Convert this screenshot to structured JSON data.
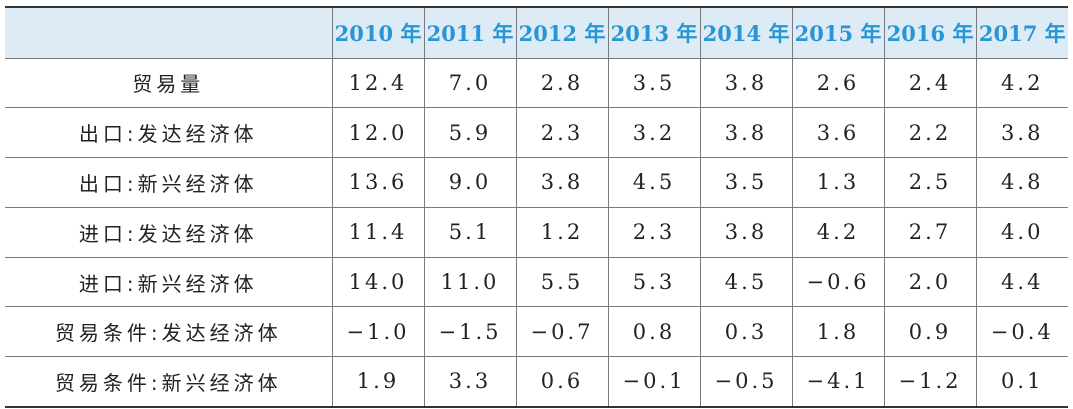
{
  "table": {
    "header": [
      "",
      "2010 年",
      "2011 年",
      "2012 年",
      "2013 年",
      "2014 年",
      "2015 年",
      "2016 年",
      "2017 年"
    ],
    "rows": [
      {
        "label": "贸易量",
        "values": [
          "12.4",
          "7.0",
          "2.8",
          "3.5",
          "3.8",
          "2.6",
          "2.4",
          "4.2"
        ]
      },
      {
        "label": "出口:发达经济体",
        "values": [
          "12.0",
          "5.9",
          "2.3",
          "3.2",
          "3.8",
          "3.6",
          "2.2",
          "3.8"
        ]
      },
      {
        "label": "出口:新兴经济体",
        "values": [
          "13.6",
          "9.0",
          "3.8",
          "4.5",
          "3.5",
          "1.3",
          "2.5",
          "4.8"
        ]
      },
      {
        "label": "进口:发达经济体",
        "values": [
          "11.4",
          "5.1",
          "1.2",
          "2.3",
          "3.8",
          "4.2",
          "2.7",
          "4.0"
        ]
      },
      {
        "label": "进口:新兴经济体",
        "values": [
          "14.0",
          "11.0",
          "5.5",
          "5.3",
          "4.5",
          "−0.6",
          "2.0",
          "4.4"
        ]
      },
      {
        "label": "贸易条件:发达经济体",
        "values": [
          "−1.0",
          "−1.5",
          "−0.7",
          "0.8",
          "0.3",
          "1.8",
          "0.9",
          "−0.4"
        ]
      },
      {
        "label": "贸易条件:新兴经济体",
        "values": [
          "1.9",
          "3.3",
          "0.6",
          "−0.1",
          "−0.5",
          "−4.1",
          "−1.2",
          "0.1"
        ]
      }
    ]
  },
  "colors": {
    "header_bg": "#dcebf5",
    "header_text": "#2a95d3",
    "rule": "#333333"
  }
}
